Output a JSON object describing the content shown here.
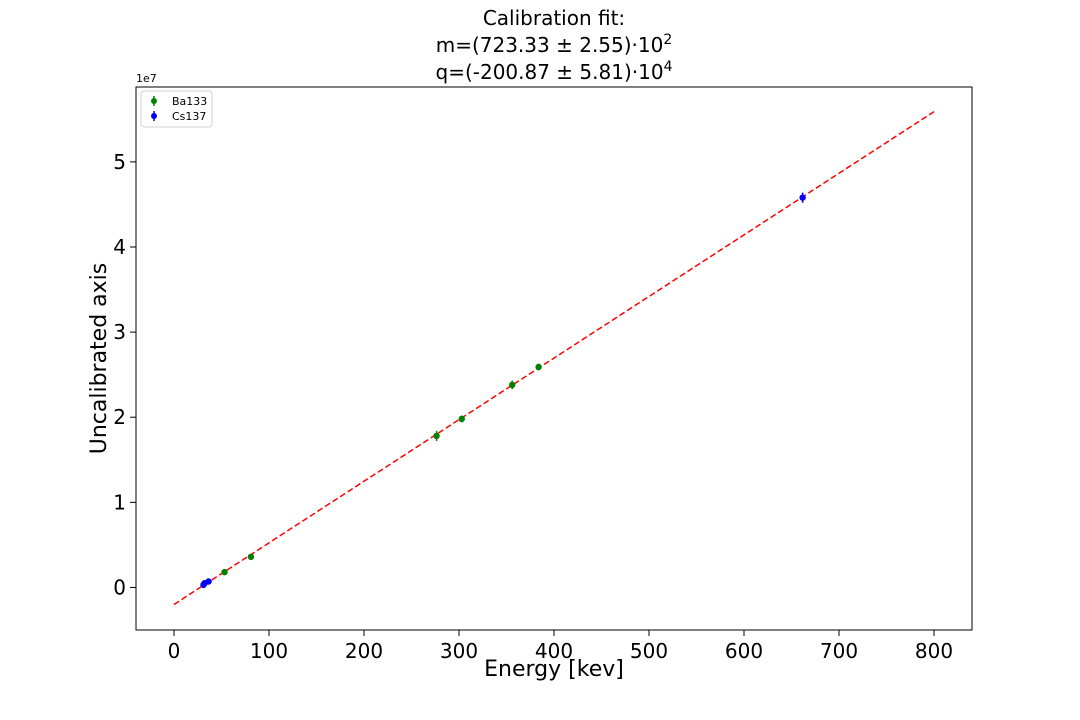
{
  "chart_data": {
    "type": "scatter",
    "title_lines": [
      {
        "text": "Calibration fit:",
        "sup": ""
      },
      {
        "text": "m=(723.33 ± 2.55)·10",
        "sup": "2"
      },
      {
        "text": "q=(-200.87 ± 5.81)·10",
        "sup": "4"
      }
    ],
    "xlabel": "Energy [kev]",
    "ylabel": "Uncalibrated axis",
    "y_offset_text": "1e7",
    "xlim": [
      -40,
      840
    ],
    "ylim": [
      -0.5,
      5.88
    ],
    "y_scale": 10000000,
    "x_ticks": [
      0,
      100,
      200,
      300,
      400,
      500,
      600,
      700,
      800
    ],
    "x_tick_labels": [
      "0",
      "100",
      "200",
      "300",
      "400",
      "500",
      "600",
      "700",
      "800"
    ],
    "y_ticks": [
      0,
      1,
      2,
      3,
      4,
      5
    ],
    "y_tick_labels": [
      "0",
      "1",
      "2",
      "3",
      "4",
      "5"
    ],
    "grid": false,
    "legend_position": "upper-left",
    "series": [
      {
        "name": "Ba133",
        "color": "#008000",
        "points": [
          {
            "x": 53.2,
            "y": 0.18,
            "err": 0.03
          },
          {
            "x": 81.0,
            "y": 0.36,
            "err": 0.03
          },
          {
            "x": 276.4,
            "y": 1.78,
            "err": 0.06
          },
          {
            "x": 302.9,
            "y": 1.98,
            "err": 0.04
          },
          {
            "x": 356.0,
            "y": 2.38,
            "err": 0.05
          },
          {
            "x": 383.8,
            "y": 2.59,
            "err": 0.04
          }
        ]
      },
      {
        "name": "Cs137",
        "color": "#0000ff",
        "points": [
          {
            "x": 31.0,
            "y": 0.03,
            "err": 0.03
          },
          {
            "x": 32.2,
            "y": 0.05,
            "err": 0.03
          },
          {
            "x": 36.4,
            "y": 0.07,
            "err": 0.03
          },
          {
            "x": 661.7,
            "y": 4.58,
            "err": 0.06
          }
        ]
      }
    ],
    "fit_line": {
      "color": "#ff0000",
      "style": "dashed",
      "x": [
        0,
        800
      ],
      "y": [
        -0.2,
        5.59
      ]
    }
  }
}
